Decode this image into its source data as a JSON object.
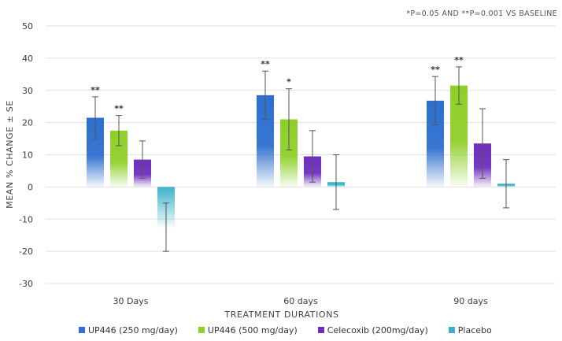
{
  "chart_data": {
    "type": "bar",
    "note": "*P=0.05 AND **P=0.001 VS BASELINE",
    "xlabel": "TREATMENT DURATIONS",
    "ylabel": "MEAN % CHANGE ± SE",
    "ylim": [
      -30,
      50
    ],
    "yticks": [
      -30,
      -20,
      -10,
      0,
      10,
      20,
      30,
      40,
      50
    ],
    "grid": true,
    "legend_position": "bottom",
    "categories": [
      "30 Days",
      "60 days",
      "90 days"
    ],
    "series": [
      {
        "name": "UP446 (250 mg/day)",
        "color": "#2e6fcf",
        "values": [
          21.5,
          28.5,
          26.8
        ],
        "error": [
          6.5,
          7.5,
          7.5
        ],
        "sig": [
          "**",
          "**",
          "**"
        ]
      },
      {
        "name": "UP446 (500 mg/day)",
        "color": "#8fcf2a",
        "values": [
          17.5,
          21.0,
          31.5
        ],
        "error": [
          4.7,
          9.5,
          5.8
        ],
        "sig": [
          "**",
          "*",
          "**"
        ]
      },
      {
        "name": "Celecoxib (200mg/day)",
        "color": "#6e2fbd",
        "values": [
          8.5,
          9.5,
          13.5
        ],
        "error": [
          5.8,
          8.0,
          10.8
        ],
        "sig": [
          "",
          "",
          ""
        ]
      },
      {
        "name": "Placebo",
        "color": "#3db3c9",
        "values": [
          -12.5,
          1.5,
          1.0
        ],
        "error": [
          7.5,
          8.5,
          7.5
        ],
        "sig": [
          "",
          "",
          ""
        ]
      }
    ]
  }
}
